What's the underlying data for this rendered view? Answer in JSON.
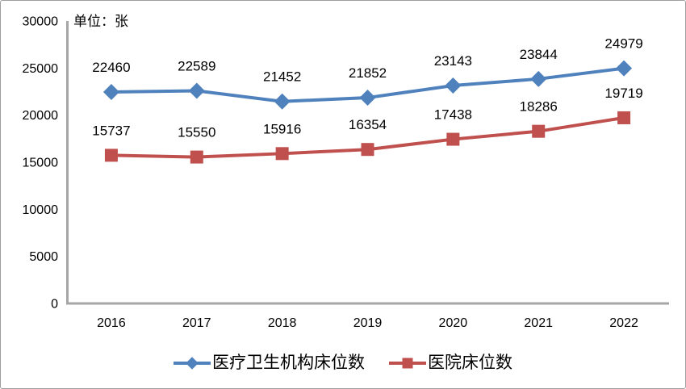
{
  "frame": {
    "background_color": "#FFFFFF",
    "border_color": "#9E9E9E"
  },
  "chart_data": {
    "type": "line",
    "unit_label": "单位：张",
    "categories": [
      "2016",
      "2017",
      "2018",
      "2019",
      "2020",
      "2021",
      "2022"
    ],
    "series": [
      {
        "name": "医疗卫生机构床位数",
        "color": "#4F81BD",
        "marker": "diamond",
        "values": [
          22460,
          22589,
          21452,
          21852,
          23143,
          23844,
          24979
        ]
      },
      {
        "name": "医院床位数",
        "color": "#C0504D",
        "marker": "square",
        "values": [
          15737,
          15550,
          15916,
          16354,
          17438,
          18286,
          19719
        ]
      }
    ],
    "ylim": [
      0,
      30000
    ],
    "ytick_step": 5000,
    "yticks": [
      "0",
      "5000",
      "10000",
      "15000",
      "20000",
      "25000",
      "30000"
    ],
    "axis_color": "#A6A6A6",
    "text_color": "#000000",
    "grid": "off",
    "data_labels": "on",
    "legend_position": "bottom"
  }
}
